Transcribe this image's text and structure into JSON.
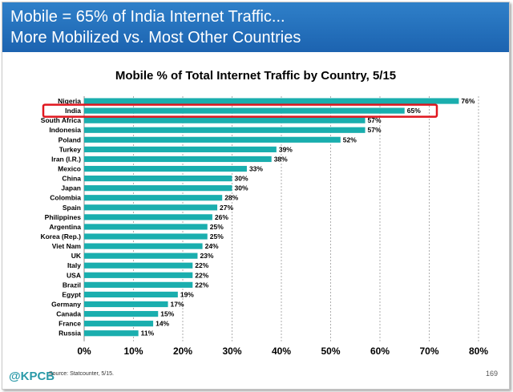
{
  "header": {
    "line1": "Mobile = 65% of India Internet Traffic...",
    "line2": "More Mobilized vs. Most Other Countries"
  },
  "footer": {
    "logo": "@KPCB",
    "source": "Source: Statcounter, 5/15.",
    "page": "169"
  },
  "colors": {
    "bar": "#1aaeae",
    "highlight": "#e0161e",
    "header": "#1f6bb5"
  },
  "chart_data": {
    "type": "bar",
    "orientation": "horizontal",
    "title": "Mobile % of Total Internet Traffic by Country, 5/15",
    "categories": [
      "Nigeria",
      "India",
      "South Africa",
      "Indonesia",
      "Poland",
      "Turkey",
      "Iran (I.R.)",
      "Mexico",
      "China",
      "Japan",
      "Colombia",
      "Spain",
      "Philippines",
      "Argentina",
      "Korea (Rep.)",
      "Viet Nam",
      "UK",
      "Italy",
      "USA",
      "Brazil",
      "Egypt",
      "Germany",
      "Canada",
      "France",
      "Russia"
    ],
    "values": [
      76,
      65,
      57,
      57,
      52,
      39,
      38,
      33,
      30,
      30,
      28,
      27,
      26,
      25,
      25,
      24,
      23,
      22,
      22,
      22,
      19,
      17,
      15,
      14,
      11
    ],
    "value_labels": [
      "76%",
      "65%",
      "57%",
      "57%",
      "52%",
      "39%",
      "38%",
      "33%",
      "30%",
      "30%",
      "28%",
      "27%",
      "26%",
      "25%",
      "25%",
      "24%",
      "23%",
      "22%",
      "22%",
      "22%",
      "19%",
      "17%",
      "15%",
      "14%",
      "11%"
    ],
    "xticks": [
      "0%",
      "10%",
      "20%",
      "30%",
      "40%",
      "50%",
      "60%",
      "70%",
      "80%"
    ],
    "xlim": [
      0,
      80
    ],
    "grid": "vertical dashed",
    "highlighted_category": "India"
  }
}
